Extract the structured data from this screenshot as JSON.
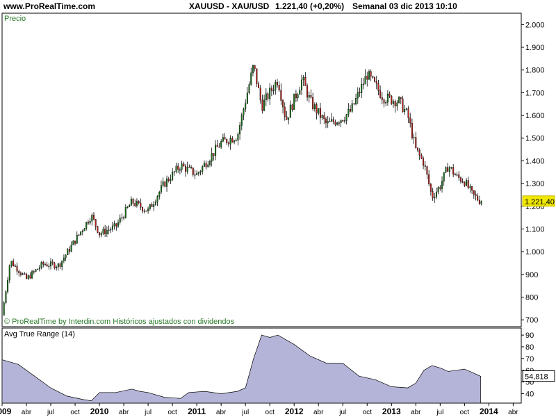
{
  "header": {
    "site": "www.ProRealTime.com",
    "symbol": "XAUUSD - XAU/USD",
    "quote": "1.221,40 (+0,20%)",
    "period": "Semanal  03 dic 2013 10:10"
  },
  "price_panel": {
    "title": "Precio",
    "footer": "© ProRealTime by Interdin.com  Históricos ajustados con dividendos",
    "last_label": "1.221,40",
    "y_ticks": [
      "2.000",
      "1.900",
      "1.800",
      "1.700",
      "1.600",
      "1.500",
      "1.400",
      "1.300",
      "1.200",
      "1.100",
      "1.000",
      "900",
      "800",
      "700"
    ]
  },
  "atr_panel": {
    "title": "Avg True Range (14)",
    "last_label": "54,818",
    "y_ticks": [
      "90",
      "80",
      "70",
      "60",
      "50",
      "40"
    ]
  },
  "x_axis": {
    "labels": [
      "2009",
      "abr",
      "jul",
      "oct",
      "2010",
      "abr",
      "jul",
      "oct",
      "2011",
      "abr",
      "jul",
      "oct",
      "2012",
      "abr",
      "jul",
      "oct",
      "2013",
      "abr",
      "jul",
      "oct",
      "2014",
      "abr"
    ],
    "bold": [
      true,
      false,
      false,
      false,
      true,
      false,
      false,
      false,
      true,
      false,
      false,
      false,
      true,
      false,
      false,
      false,
      true,
      false,
      false,
      false,
      true,
      false
    ]
  },
  "colors": {
    "up_candle": "#1a7a1a",
    "down_candle": "#c0201a",
    "atr_fill": "#b4b4d8",
    "last_price_bg": "#f0e800",
    "axis": "#000000"
  },
  "chart_data": [
    {
      "type": "candlestick",
      "title": "Precio",
      "frequency": "weekly",
      "x_range": [
        "2009-01",
        "2014-04"
      ],
      "ylim": [
        670,
        2050
      ],
      "key_points": [
        {
          "date": "2009-01",
          "close": 720
        },
        {
          "date": "2009-02",
          "close": 960
        },
        {
          "date": "2009-04",
          "close": 880
        },
        {
          "date": "2009-06",
          "close": 945
        },
        {
          "date": "2009-08",
          "close": 940
        },
        {
          "date": "2009-10",
          "close": 1050
        },
        {
          "date": "2009-12",
          "close": 1160
        },
        {
          "date": "2010-01",
          "close": 1080
        },
        {
          "date": "2010-03",
          "close": 1110
        },
        {
          "date": "2010-05",
          "close": 1220
        },
        {
          "date": "2010-07",
          "close": 1180
        },
        {
          "date": "2010-09",
          "close": 1300
        },
        {
          "date": "2010-11",
          "close": 1380
        },
        {
          "date": "2011-01",
          "close": 1340
        },
        {
          "date": "2011-04",
          "close": 1480
        },
        {
          "date": "2011-06",
          "close": 1510
        },
        {
          "date": "2011-08",
          "close": 1820
        },
        {
          "date": "2011-09",
          "close": 1640
        },
        {
          "date": "2011-11",
          "close": 1760
        },
        {
          "date": "2011-12",
          "close": 1580
        },
        {
          "date": "2012-02",
          "close": 1760
        },
        {
          "date": "2012-03",
          "close": 1660
        },
        {
          "date": "2012-05",
          "close": 1560
        },
        {
          "date": "2012-07",
          "close": 1590
        },
        {
          "date": "2012-08",
          "close": 1620
        },
        {
          "date": "2012-10",
          "close": 1780
        },
        {
          "date": "2012-12",
          "close": 1680
        },
        {
          "date": "2013-02",
          "close": 1660
        },
        {
          "date": "2013-03",
          "close": 1600
        },
        {
          "date": "2013-04",
          "close": 1450
        },
        {
          "date": "2013-05",
          "close": 1390
        },
        {
          "date": "2013-06",
          "close": 1240
        },
        {
          "date": "2013-07",
          "close": 1290
        },
        {
          "date": "2013-08",
          "close": 1380
        },
        {
          "date": "2013-09",
          "close": 1330
        },
        {
          "date": "2013-10",
          "close": 1310
        },
        {
          "date": "2013-11",
          "close": 1250
        },
        {
          "date": "2013-12",
          "close": 1221.4
        }
      ],
      "last_value": 1221.4,
      "change_pct": 0.2
    },
    {
      "type": "area",
      "title": "Avg True Range (14)",
      "ylim": [
        32,
        96
      ],
      "key_points": [
        {
          "date": "2009-01",
          "value": 69
        },
        {
          "date": "2009-03",
          "value": 65
        },
        {
          "date": "2009-05",
          "value": 55
        },
        {
          "date": "2009-07",
          "value": 45
        },
        {
          "date": "2009-09",
          "value": 38
        },
        {
          "date": "2009-11",
          "value": 35
        },
        {
          "date": "2009-12",
          "value": 34
        },
        {
          "date": "2010-01",
          "value": 41
        },
        {
          "date": "2010-03",
          "value": 41
        },
        {
          "date": "2010-05",
          "value": 44
        },
        {
          "date": "2010-06",
          "value": 42
        },
        {
          "date": "2010-07",
          "value": 41
        },
        {
          "date": "2010-09",
          "value": 37
        },
        {
          "date": "2010-11",
          "value": 36
        },
        {
          "date": "2010-12",
          "value": 41
        },
        {
          "date": "2011-02",
          "value": 42
        },
        {
          "date": "2011-04",
          "value": 40
        },
        {
          "date": "2011-06",
          "value": 42
        },
        {
          "date": "2011-07",
          "value": 45
        },
        {
          "date": "2011-08",
          "value": 70
        },
        {
          "date": "2011-09",
          "value": 90
        },
        {
          "date": "2011-10",
          "value": 88
        },
        {
          "date": "2011-11",
          "value": 90
        },
        {
          "date": "2012-01",
          "value": 82
        },
        {
          "date": "2012-03",
          "value": 72
        },
        {
          "date": "2012-05",
          "value": 66
        },
        {
          "date": "2012-07",
          "value": 66
        },
        {
          "date": "2012-09",
          "value": 55
        },
        {
          "date": "2012-11",
          "value": 52
        },
        {
          "date": "2013-01",
          "value": 46
        },
        {
          "date": "2013-03",
          "value": 45
        },
        {
          "date": "2013-04",
          "value": 49
        },
        {
          "date": "2013-05",
          "value": 60
        },
        {
          "date": "2013-06",
          "value": 64
        },
        {
          "date": "2013-07",
          "value": 62
        },
        {
          "date": "2013-08",
          "value": 59
        },
        {
          "date": "2013-09",
          "value": 60
        },
        {
          "date": "2013-10",
          "value": 61
        },
        {
          "date": "2013-11",
          "value": 58
        },
        {
          "date": "2013-12",
          "value": 54.818
        }
      ],
      "last_value": 54.818
    }
  ]
}
